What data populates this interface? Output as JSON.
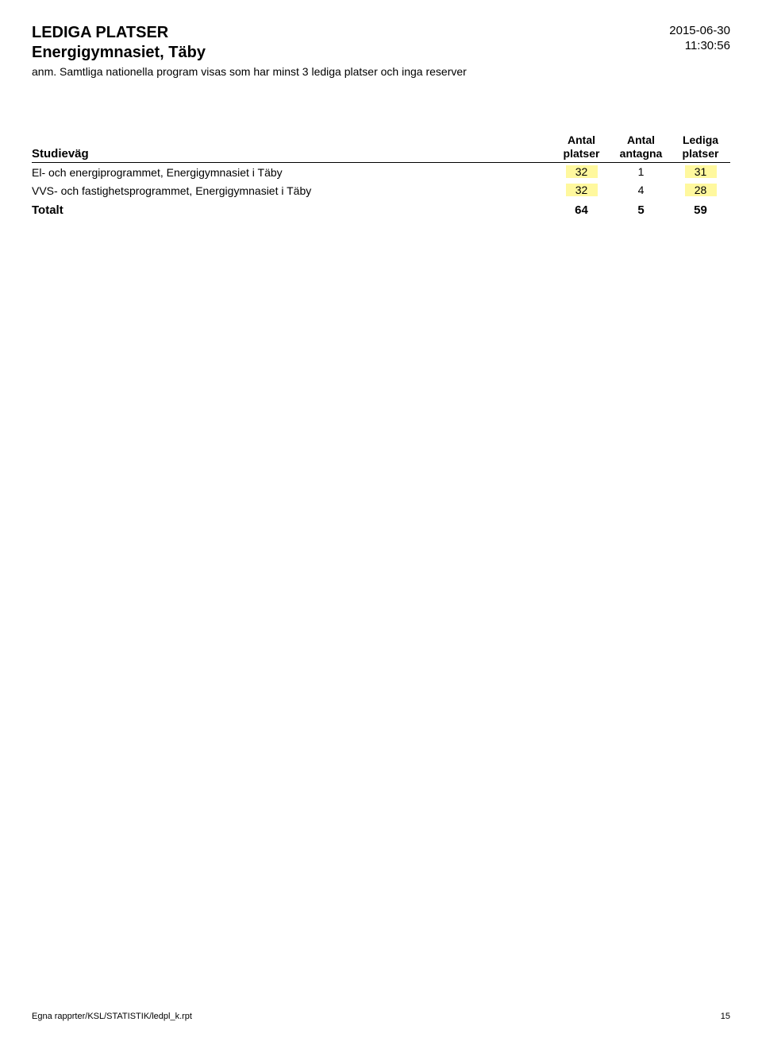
{
  "header": {
    "title_main": "LEDIGA PLATSER",
    "title_sub": "Energigymnasiet, Täby",
    "note": "anm. Samtliga nationella program visas som har minst 3 lediga platser och inga reserver",
    "date": "2015-06-30",
    "time": "11:30:56"
  },
  "table": {
    "columns": {
      "name": "Studieväg",
      "col1_line1": "Antal",
      "col1_line2": "platser",
      "col2_line1": "Antal",
      "col2_line2": "antagna",
      "col3_line1": "Lediga",
      "col3_line2": "platser"
    },
    "rows": [
      {
        "name": "El- och energiprogrammet, Energigymnasiet i Täby",
        "platser": "32",
        "antagna": "1",
        "lediga": "31"
      },
      {
        "name": "VVS- och fastighetsprogrammet, Energigymnasiet i Täby",
        "platser": "32",
        "antagna": "4",
        "lediga": "28"
      }
    ],
    "total": {
      "label": "Totalt",
      "platser": "64",
      "antagna": "5",
      "lediga": "59"
    }
  },
  "footer": {
    "path": "Egna rapprter/KSL/STATISTIK/ledpl_k.rpt",
    "page": "15"
  },
  "style": {
    "highlight_color": "#fff89e",
    "text_color": "#000000",
    "background_color": "#ffffff"
  }
}
